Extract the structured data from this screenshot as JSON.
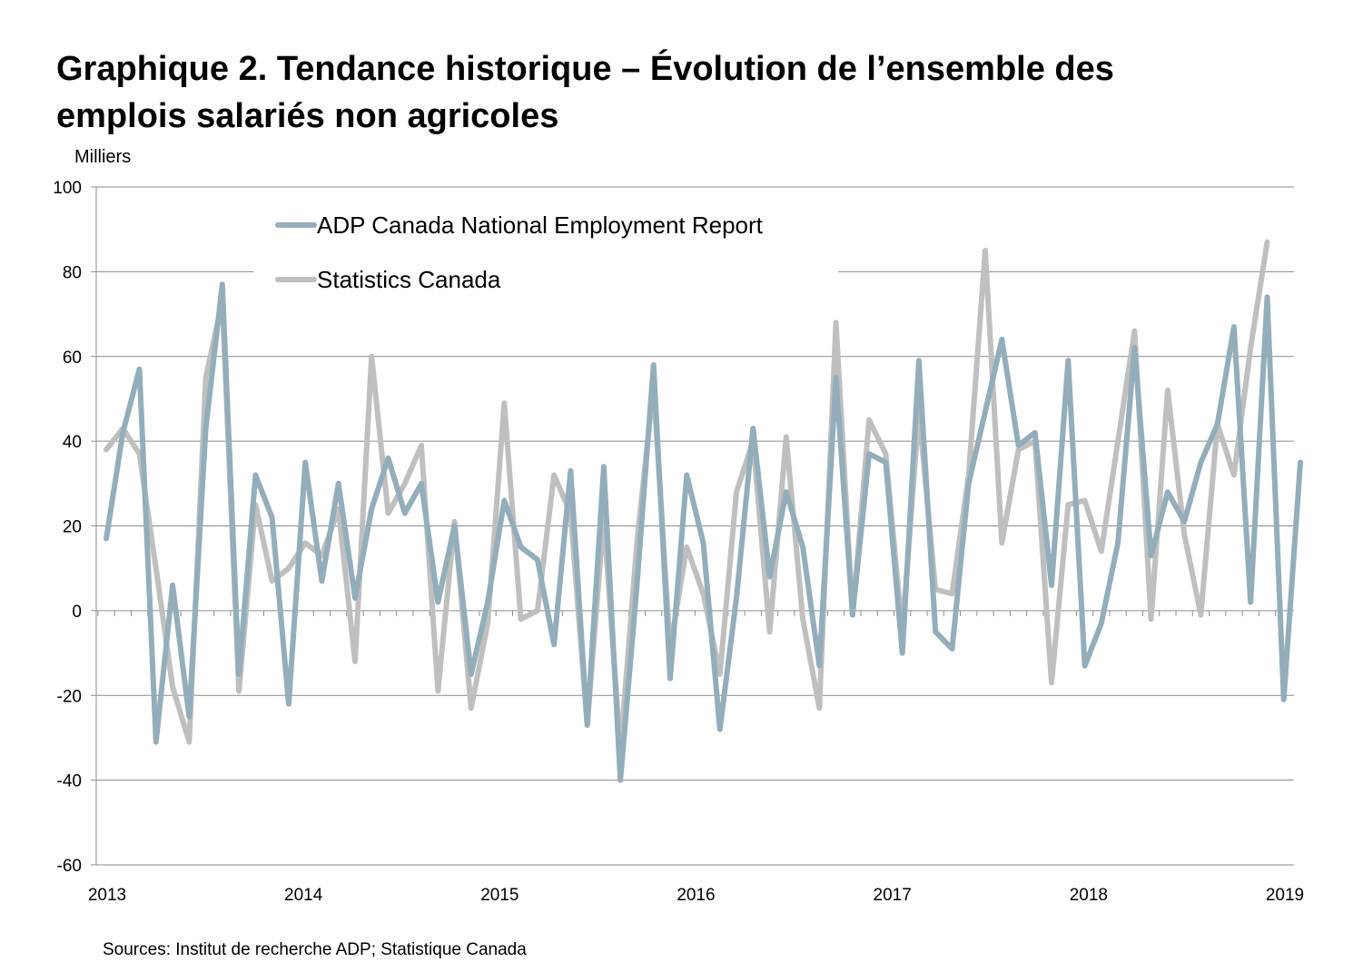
{
  "chart_data": {
    "type": "line",
    "title_line1": "Graphique 2. Tendance historique – Évolution de l’ensemble des",
    "title_line2": "emplois salariés non agricoles",
    "ylabel": "Milliers",
    "source": "Sources: Institut de recherche ADP; Statistique Canada",
    "ylim": [
      -60,
      100
    ],
    "yticks": [
      100,
      80,
      60,
      40,
      20,
      0,
      -20,
      -40,
      -60
    ],
    "xlim": [
      2013,
      2019
    ],
    "xticks": [
      "2013",
      "2014",
      "2015",
      "2016",
      "2017",
      "2018",
      "2019"
    ],
    "grid": true,
    "legend_position": "top-left",
    "series": [
      {
        "name": "ADP Canada National Employment Report",
        "color": "#93adbb",
        "values": [
          17,
          42,
          57,
          -31,
          6,
          -25,
          43,
          77,
          -15,
          32,
          22,
          -22,
          35,
          7,
          30,
          3,
          24,
          36,
          23,
          30,
          2,
          20,
          -15,
          2,
          26,
          15,
          12,
          -8,
          33,
          -27,
          34,
          -40,
          6,
          58,
          -16,
          32,
          16,
          -28,
          3,
          43,
          8,
          28,
          15,
          -13,
          55,
          -1,
          37,
          35,
          -10,
          59,
          -5,
          -9,
          30,
          47,
          64,
          39,
          42,
          6,
          59,
          -13,
          -3,
          16,
          62,
          13,
          28,
          21,
          35,
          44,
          67,
          2,
          74,
          -21,
          35
        ]
      },
      {
        "name": "Statistics Canada",
        "color": "#bfbfbf",
        "values": [
          38,
          43,
          37,
          10,
          -18,
          -31,
          55,
          73,
          -19,
          25,
          7,
          10,
          16,
          13,
          24,
          -12,
          60,
          23,
          30,
          39,
          -19,
          21,
          -23,
          -3,
          49,
          -2,
          0,
          32,
          23,
          -27,
          22,
          -33,
          16,
          53,
          -9,
          15,
          4,
          -15,
          28,
          40,
          -5,
          41,
          -2,
          -23,
          68,
          -1,
          45,
          37,
          -5,
          47,
          5,
          4,
          32,
          85,
          16,
          38,
          40,
          -17,
          25,
          26,
          14,
          40,
          66,
          -2,
          52,
          18,
          -1,
          44,
          32,
          62,
          87
        ]
      }
    ]
  }
}
